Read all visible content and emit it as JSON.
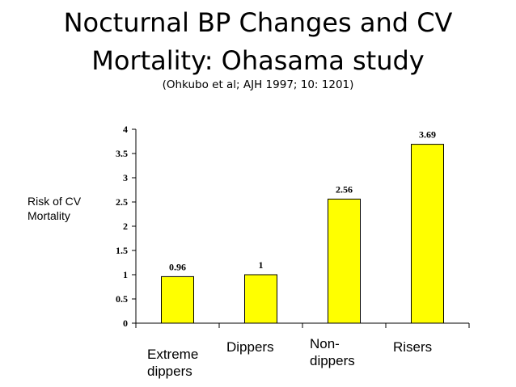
{
  "header": {
    "title_line1": "Nocturnal BP Changes and CV",
    "title_line2": "Mortality: Ohasama study",
    "citation": "(Ohkubo et al; AJH 1997; 10: 1201)"
  },
  "chart_data": {
    "type": "bar",
    "categories": [
      "Extreme\ndippers",
      "Dippers",
      "Non-\ndippers",
      "Risers"
    ],
    "values": [
      0.96,
      1,
      2.56,
      3.69
    ],
    "data_labels": [
      "0.96",
      "1",
      "2.56",
      "3.69"
    ],
    "ylabel": "Risk of CV\nMortality",
    "xlabel": "",
    "ylim": [
      0,
      4
    ],
    "yticks": [
      "0",
      "0.5",
      "1",
      "1.5",
      "2",
      "2.5",
      "3",
      "3.5",
      "4"
    ],
    "bar_color": "#ffff00",
    "grid": false,
    "legend": "none"
  }
}
